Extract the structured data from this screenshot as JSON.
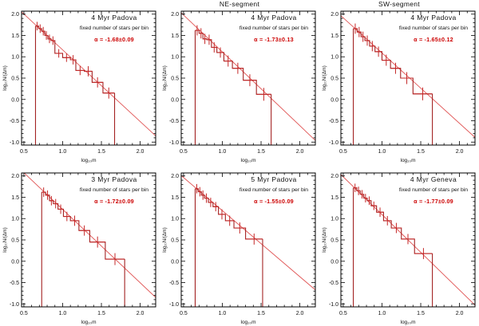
{
  "figure": {
    "column_titles": [
      "",
      "NE-segment",
      "SW-segment"
    ],
    "xlabel": "log₁₀m",
    "ylabel": "log₁₀N/(Δm)",
    "xlim": [
      0.47,
      2.2
    ],
    "ylim": [
      -1.07,
      2.07
    ],
    "xticks": [
      0.5,
      1.0,
      1.5,
      2.0
    ],
    "yticks": [
      -1.0,
      -0.5,
      0.0,
      0.5,
      1.0,
      1.5,
      2.0
    ],
    "minor_tick_step": 0.1,
    "grid": false,
    "legend": "none"
  },
  "colors": {
    "histogram": "#a32222",
    "error_bar": "#c42727",
    "fit_line": "#e05353",
    "alpha_text": "#cc0000",
    "frame": "#000000",
    "background": "#ffffff"
  },
  "chart_data": [
    {
      "type": "step-histogram",
      "title": "4 Myr Padova",
      "subtitle": "fixed number of stars per bin",
      "alpha_label": "α = -1.68±0.09",
      "fit": {
        "slope": -1.68,
        "x0": 0.65,
        "y0": 1.75
      },
      "bin_edges": [
        0.65,
        0.69,
        0.73,
        0.77,
        0.81,
        0.85,
        0.9,
        1.0,
        1.1,
        1.17,
        1.28,
        1.38,
        1.52,
        1.67
      ],
      "values": [
        1.72,
        1.66,
        1.6,
        1.5,
        1.42,
        1.38,
        1.08,
        0.98,
        0.93,
        0.68,
        0.66,
        0.4,
        0.15
      ],
      "yerr": [
        0.1,
        0.1,
        0.1,
        0.1,
        0.1,
        0.1,
        0.1,
        0.1,
        0.11,
        0.11,
        0.12,
        0.12,
        0.13
      ]
    },
    {
      "type": "step-histogram",
      "title": "4 Myr Padova",
      "subtitle": "fixed number of stars per bin",
      "alpha_label": "α = -1.73±0.13",
      "fit": {
        "slope": -1.73,
        "x0": 0.65,
        "y0": 1.72
      },
      "bin_edges": [
        0.65,
        0.7,
        0.75,
        0.8,
        0.86,
        0.93,
        1.02,
        1.13,
        1.27,
        1.44,
        1.63
      ],
      "values": [
        1.62,
        1.55,
        1.42,
        1.4,
        1.22,
        1.1,
        0.9,
        0.73,
        0.45,
        0.12
      ],
      "yerr": [
        0.12,
        0.12,
        0.12,
        0.12,
        0.12,
        0.12,
        0.13,
        0.13,
        0.14,
        0.15
      ]
    },
    {
      "type": "step-histogram",
      "title": "4 Myr Padova",
      "subtitle": "fixed number of stars per bin",
      "alpha_label": "α = -1.65±0.12",
      "fit": {
        "slope": -1.65,
        "x0": 0.63,
        "y0": 1.7
      },
      "bin_edges": [
        0.63,
        0.68,
        0.73,
        0.78,
        0.84,
        0.91,
        1.0,
        1.11,
        1.24,
        1.4,
        1.65
      ],
      "values": [
        1.66,
        1.58,
        1.47,
        1.38,
        1.25,
        1.12,
        0.92,
        0.73,
        0.5,
        0.13
      ],
      "yerr": [
        0.12,
        0.12,
        0.12,
        0.12,
        0.12,
        0.12,
        0.13,
        0.13,
        0.14,
        0.15
      ]
    },
    {
      "type": "step-histogram",
      "title": "3 Myr Padova",
      "subtitle": "fixed number of stars per bin",
      "alpha_label": "α = -1.72±0.09",
      "fit": {
        "slope": -1.72,
        "x0": 0.73,
        "y0": 1.68
      },
      "bin_edges": [
        0.73,
        0.78,
        0.83,
        0.88,
        0.94,
        1.01,
        1.1,
        1.21,
        1.35,
        1.55,
        1.8
      ],
      "values": [
        1.62,
        1.55,
        1.42,
        1.35,
        1.22,
        1.05,
        0.95,
        0.72,
        0.45,
        0.05
      ],
      "yerr": [
        0.11,
        0.11,
        0.11,
        0.11,
        0.11,
        0.11,
        0.12,
        0.12,
        0.13,
        0.14
      ]
    },
    {
      "type": "step-histogram",
      "title": "5 Myr Padova",
      "subtitle": "fixed number of stars per bin",
      "alpha_label": "α = -1.55±0.09",
      "fit": {
        "slope": -1.55,
        "x0": 0.65,
        "y0": 1.73
      },
      "bin_edges": [
        0.65,
        0.69,
        0.73,
        0.77,
        0.82,
        0.88,
        0.95,
        1.04,
        1.15,
        1.3,
        1.52
      ],
      "values": [
        1.7,
        1.63,
        1.55,
        1.48,
        1.38,
        1.28,
        1.1,
        0.95,
        0.78,
        0.52
      ],
      "yerr": [
        0.11,
        0.11,
        0.11,
        0.11,
        0.11,
        0.11,
        0.12,
        0.12,
        0.13,
        0.13
      ]
    },
    {
      "type": "step-histogram",
      "title": "4 Myr Geneva",
      "subtitle": "fixed number of stars per bin",
      "alpha_label": "α = -1.77±0.09",
      "fit": {
        "slope": -1.77,
        "x0": 0.63,
        "y0": 1.75
      },
      "bin_edges": [
        0.63,
        0.675,
        0.72,
        0.765,
        0.81,
        0.86,
        0.93,
        1.02,
        1.12,
        1.25,
        1.42,
        1.65
      ],
      "values": [
        1.72,
        1.65,
        1.57,
        1.48,
        1.42,
        1.3,
        1.15,
        0.95,
        0.78,
        0.52,
        0.18
      ],
      "yerr": [
        0.1,
        0.1,
        0.1,
        0.1,
        0.1,
        0.1,
        0.11,
        0.11,
        0.12,
        0.12,
        0.13
      ]
    }
  ]
}
